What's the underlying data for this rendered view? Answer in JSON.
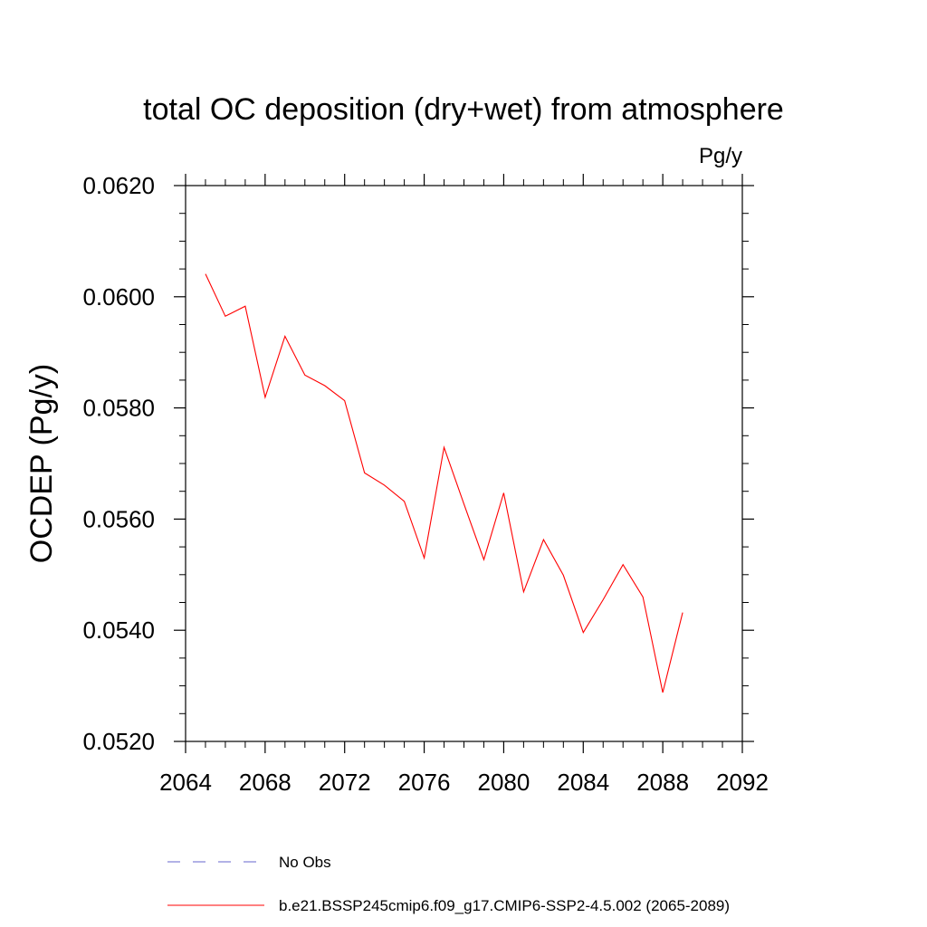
{
  "chart_data": {
    "type": "line",
    "title": "total OC deposition (dry+wet) from atmosphere",
    "units": "Pg/y",
    "ylabel": "OCDEP  (Pg/y)",
    "xlabel": "",
    "xlim": [
      2064,
      2092
    ],
    "ylim": [
      0.052,
      0.062
    ],
    "xticks": [
      2064,
      2068,
      2072,
      2076,
      2080,
      2084,
      2088,
      2092
    ],
    "xtick_labels": [
      "2064",
      "2068",
      "2072",
      "2076",
      "2080",
      "2084",
      "2088",
      "2092"
    ],
    "xminor_step": 1,
    "yticks": [
      0.052,
      0.054,
      0.056,
      0.058,
      0.06,
      0.062
    ],
    "ytick_labels": [
      "0.0520",
      "0.0540",
      "0.0560",
      "0.0580",
      "0.0600",
      "0.0620"
    ],
    "yminor_step": 0.0005,
    "grid": false,
    "series": [
      {
        "name": "b.e21.BSSP245cmip6.f09_g17.CMIP6-SSP2-4.5.002 (2065-2089)",
        "color": "#ff0000",
        "x": [
          2065,
          2066,
          2067,
          2068,
          2069,
          2070,
          2071,
          2072,
          2073,
          2074,
          2075,
          2076,
          2077,
          2078,
          2079,
          2080,
          2081,
          2082,
          2083,
          2084,
          2085,
          2086,
          2087,
          2088,
          2089
        ],
        "values": [
          0.06041,
          0.05965,
          0.05983,
          0.05819,
          0.05929,
          0.05859,
          0.0584,
          0.05813,
          0.05683,
          0.05661,
          0.05632,
          0.0553,
          0.05729,
          0.05627,
          0.05527,
          0.05647,
          0.05469,
          0.05563,
          0.05499,
          0.05396,
          0.05455,
          0.05518,
          0.0546,
          0.05288,
          0.05432
        ]
      }
    ],
    "legend": {
      "placement": "bottom",
      "entries": [
        {
          "label": "No Obs",
          "color": "#6666cc",
          "style": "dashed"
        },
        {
          "label": "b.e21.BSSP245cmip6.f09_g17.CMIP6-SSP2-4.5.002 (2065-2089)",
          "color": "#ff0000",
          "style": "solid"
        }
      ]
    }
  }
}
